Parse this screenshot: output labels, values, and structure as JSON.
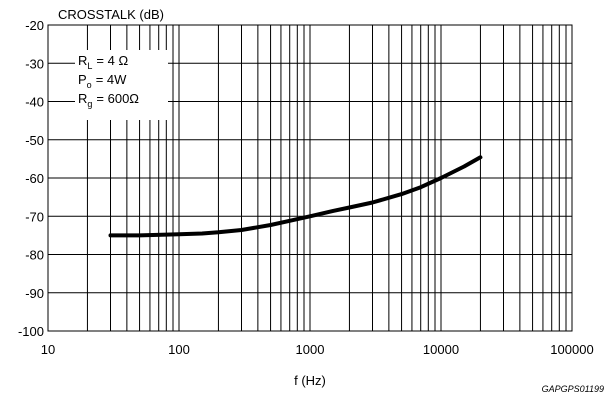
{
  "chart_data": {
    "type": "line",
    "ylabel": "CROSSTALK (dB)",
    "xlabel": "f (Hz)",
    "xscale": "log",
    "xlim": [
      10,
      100000
    ],
    "ylim": [
      -100,
      -20
    ],
    "grid": true,
    "x_ticks": [
      "10",
      "100",
      "1000",
      "10000",
      "100000"
    ],
    "y_ticks": [
      "-20",
      "-30",
      "-40",
      "-50",
      "-60",
      "-70",
      "-80",
      "-90",
      "-100"
    ],
    "conditions": [
      {
        "symbol": "R",
        "sub": "L",
        "value": "= 4 Ω"
      },
      {
        "symbol": "P",
        "sub": "o",
        "value": "= 4W"
      },
      {
        "symbol": "R",
        "sub": "g",
        "value": "= 600Ω"
      }
    ],
    "code": "GAPGPS01199",
    "series": [
      {
        "x": [
          30,
          50,
          80,
          100,
          150,
          200,
          300,
          500,
          700,
          1000,
          1500,
          2000,
          3000,
          5000,
          7000,
          10000,
          15000,
          20000
        ],
        "values": [
          -75,
          -75,
          -74.8,
          -74.7,
          -74.5,
          -74.2,
          -73.6,
          -72.3,
          -71.2,
          -70,
          -68.6,
          -67.7,
          -66.4,
          -64.2,
          -62.4,
          -60,
          -57,
          -54.6
        ]
      }
    ]
  }
}
